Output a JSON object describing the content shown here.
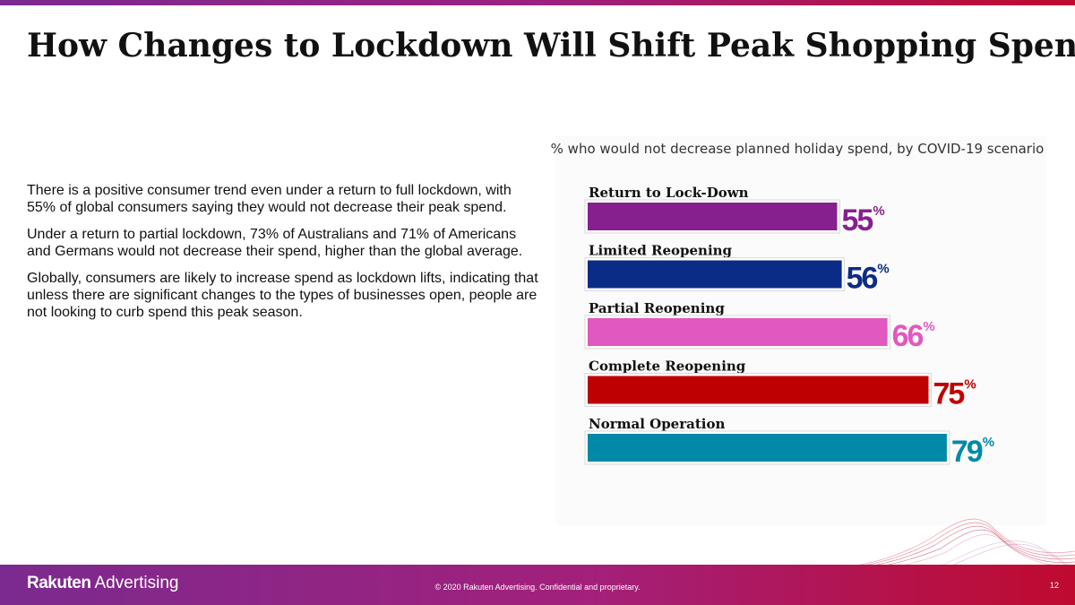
{
  "slide": {
    "title": "How Changes to Lockdown Will Shift Peak Shopping Spend",
    "paragraphs": [
      "There is a positive consumer trend even under a return to full lockdown, with 55% of global consumers saying they would not decrease their peak spend.",
      "Under a return to partial lockdown, 73% of Australians and 71% of Americans and Germans would not decrease their spend, higher than the global average.",
      "Globally, consumers are likely to increase spend as lockdown lifts, indicating that unless there are significant changes to the types of businesses open, people are not looking to curb spend this peak season."
    ]
  },
  "chart_data": {
    "type": "bar",
    "orientation": "horizontal",
    "title": "% who would not decrease planned holiday spend, by COVID-19 scenario",
    "categories": [
      "Return to Lock-Down",
      "Limited Reopening",
      "Partial Reopening",
      "Complete Reopening",
      "Normal Operation"
    ],
    "values": [
      55,
      56,
      66,
      75,
      79
    ],
    "value_labels": [
      "55",
      "56",
      "66",
      "75",
      "79"
    ],
    "unit_symbol": "%",
    "colors": [
      "#87208f",
      "#0b2c86",
      "#e158c0",
      "#bf0000",
      "#0089a8"
    ],
    "xlim": [
      0,
      100
    ],
    "grid": false,
    "legend": "none"
  },
  "footer": {
    "logo_brand": "Rakuten",
    "logo_sub": "Advertising",
    "copyright": "© 2020 Rakuten Advertising. Confidential and proprietary.",
    "page_number": "12"
  }
}
